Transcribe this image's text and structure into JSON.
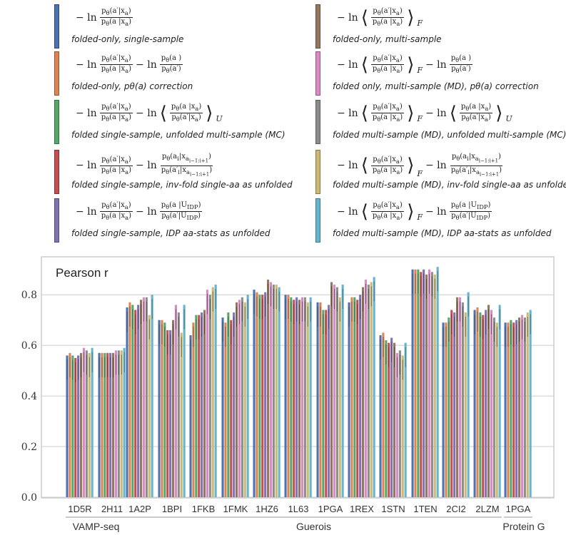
{
  "legend": {
    "items": [
      {
        "id": "s1",
        "color": "#4c72b0",
        "formula": "−ln p_θ(a′|x_a) / p_θ(a|x_a)",
        "description": "folded-only, single-sample"
      },
      {
        "id": "s2",
        "color": "#dd8452",
        "formula": "−ln p_θ(a′|x_a)/p_θ(a|x_a) − ln p_θ(a)/p_θ(a′)",
        "description": "folded-only, pθ(a) correction"
      },
      {
        "id": "s3",
        "color": "#55a868",
        "formula": "−ln p_θ(a′|x_a)/p_θ(a|x_a) − ln ⟨p_θ(a|x_a)/p_θ(a′|x_a)⟩_U",
        "description": "folded single-sample, unfolded multi-sample (MC)"
      },
      {
        "id": "s4",
        "color": "#c44e52",
        "formula": "−ln p_θ(a′|x_a)/p_θ(a|x_a) − ln p_θ(a_i|x_a,i−1:i+1)/p_θ(a′_i|x_a,i−1:i+1)",
        "description": "folded single-sample, inv-fold single-aa as unfolded"
      },
      {
        "id": "s5",
        "color": "#8172b3",
        "formula": "−ln p_θ(a′|x_a)/p_θ(a|x_a) − ln p_θ(a|U_IDP)/p_θ(a′|U_IDP)",
        "description": "folded single-sample, IDP aa-stats as unfolded"
      },
      {
        "id": "s6",
        "color": "#937860",
        "formula": "−ln ⟨p_θ(a′|x_a)/p_θ(a|x_a)⟩_F",
        "description": "folded-only, multi-sample"
      },
      {
        "id": "s7",
        "color": "#da8bc3",
        "formula": "−ln ⟨p_θ(a′|x_a)/p_θ(a|x_a)⟩_F − ln p_θ(a)/p_θ(a′)",
        "description": "folded only, multi-sample (MD), pθ(a) correction"
      },
      {
        "id": "s8",
        "color": "#8c8c8c",
        "formula": "−ln ⟨p_θ(a′|x_a)/p_θ(a|x_a)⟩_F − ln ⟨p_θ(a|x_a)/p_θ(a′|x_a)⟩_U",
        "description": "folded multi-sample (MD), unfolded multi-sample (MC)"
      },
      {
        "id": "s9",
        "color": "#ccb974",
        "formula": "−ln ⟨p_θ(a′|x_a)/p_θ(a|x_a)⟩_F − ln p_θ(a_i|x_a,i−1:i+1)/p_θ(a′_i|x_a,i−1:i+1)",
        "description": "folded multi-sample (MD), inv-fold single-aa as unfolded"
      },
      {
        "id": "s10",
        "color": "#64b5cd",
        "formula": "−ln ⟨p_θ(a′|x_a)/p_θ(a|x_a)⟩_F − ln p_θ(a|U_IDP)/p_θ(a′|U_IDP)",
        "description": "folded multi-sample (MD), IDP aa-stats as unfolded"
      }
    ]
  },
  "chart_data": {
    "type": "bar",
    "title": "Pearson r",
    "xlabel": "",
    "ylabel": "",
    "ylim": [
      0.0,
      0.95
    ],
    "yticks": [
      "0.0",
      "0.2",
      "0.4",
      "0.6",
      "0.8"
    ],
    "ytick_values": [
      0.0,
      0.2,
      0.4,
      0.6,
      0.8
    ],
    "categories": [
      "1D5R",
      "2H11",
      "1A2P",
      "1BPI",
      "1FKB",
      "1FMK",
      "1HZ6",
      "1L63",
      "1PGA",
      "1REX",
      "1STN",
      "1TEN",
      "2CI2",
      "2LZM",
      "1PGA"
    ],
    "groups": [
      {
        "label": "VAMP-seq",
        "start": 0,
        "end": 1
      },
      {
        "label": "Guerois",
        "start": 2,
        "end": 13
      },
      {
        "label": "Protein G",
        "start": 14,
        "end": 14
      }
    ],
    "series": [
      {
        "name": "folded-only, single-sample",
        "values": [
          0.56,
          0.57,
          0.75,
          0.7,
          0.64,
          0.71,
          0.82,
          0.8,
          0.77,
          0.77,
          0.64,
          0.9,
          0.69,
          0.74,
          0.69
        ]
      },
      {
        "name": "folded-only, pθ(a) correction",
        "values": [
          0.57,
          0.57,
          0.77,
          0.7,
          0.69,
          0.69,
          0.81,
          0.8,
          0.77,
          0.79,
          0.65,
          0.9,
          0.69,
          0.75,
          0.69
        ]
      },
      {
        "name": "folded single-sample, unfolded multi-sample (MC)",
        "values": [
          0.56,
          0.57,
          0.76,
          0.69,
          0.72,
          0.73,
          0.8,
          0.79,
          0.74,
          0.79,
          0.62,
          0.9,
          0.71,
          0.73,
          0.7
        ]
      },
      {
        "name": "folded single-sample, inv-fold single-aa as unfolded",
        "values": [
          0.55,
          0.57,
          0.74,
          0.66,
          0.72,
          0.7,
          0.8,
          0.78,
          0.74,
          0.78,
          0.61,
          0.89,
          0.74,
          0.72,
          0.69
        ]
      },
      {
        "name": "folded single-sample, IDP aa-stats as unfolded",
        "values": [
          0.56,
          0.57,
          0.76,
          0.66,
          0.73,
          0.73,
          0.81,
          0.79,
          0.76,
          0.8,
          0.63,
          0.9,
          0.73,
          0.74,
          0.7
        ]
      },
      {
        "name": "folded-only, multi-sample",
        "values": [
          0.57,
          0.57,
          0.78,
          0.7,
          0.74,
          0.77,
          0.86,
          0.78,
          0.85,
          0.83,
          0.61,
          0.88,
          0.79,
          0.76,
          0.71
        ]
      },
      {
        "name": "folded only, multi-sample (MD), pθ(a) correction",
        "values": [
          0.59,
          0.58,
          0.79,
          0.76,
          0.82,
          0.78,
          0.85,
          0.79,
          0.84,
          0.86,
          0.57,
          0.9,
          0.79,
          0.74,
          0.72
        ]
      },
      {
        "name": "folded multi-sample (MD), unfolded multi-sample (MC)",
        "values": [
          0.58,
          0.58,
          0.79,
          0.73,
          0.8,
          0.79,
          0.84,
          0.79,
          0.83,
          0.84,
          0.58,
          0.89,
          0.77,
          0.71,
          0.71
        ]
      },
      {
        "name": "folded multi-sample (MD), inv-fold single-aa as unfolded",
        "values": [
          0.57,
          0.58,
          0.72,
          0.65,
          0.83,
          0.77,
          0.84,
          0.77,
          0.79,
          0.85,
          0.56,
          0.88,
          0.73,
          0.69,
          0.73
        ]
      },
      {
        "name": "folded multi-sample (MD), IDP aa-stats as unfolded",
        "values": [
          0.59,
          0.59,
          0.8,
          0.76,
          0.84,
          0.8,
          0.83,
          0.79,
          0.84,
          0.87,
          0.61,
          0.91,
          0.81,
          0.76,
          0.74
        ]
      }
    ],
    "colors": [
      "#4c72b0",
      "#dd8452",
      "#55a868",
      "#c44e52",
      "#8172b3",
      "#937860",
      "#da8bc3",
      "#8c8c8c",
      "#ccb974",
      "#64b5cd"
    ]
  }
}
